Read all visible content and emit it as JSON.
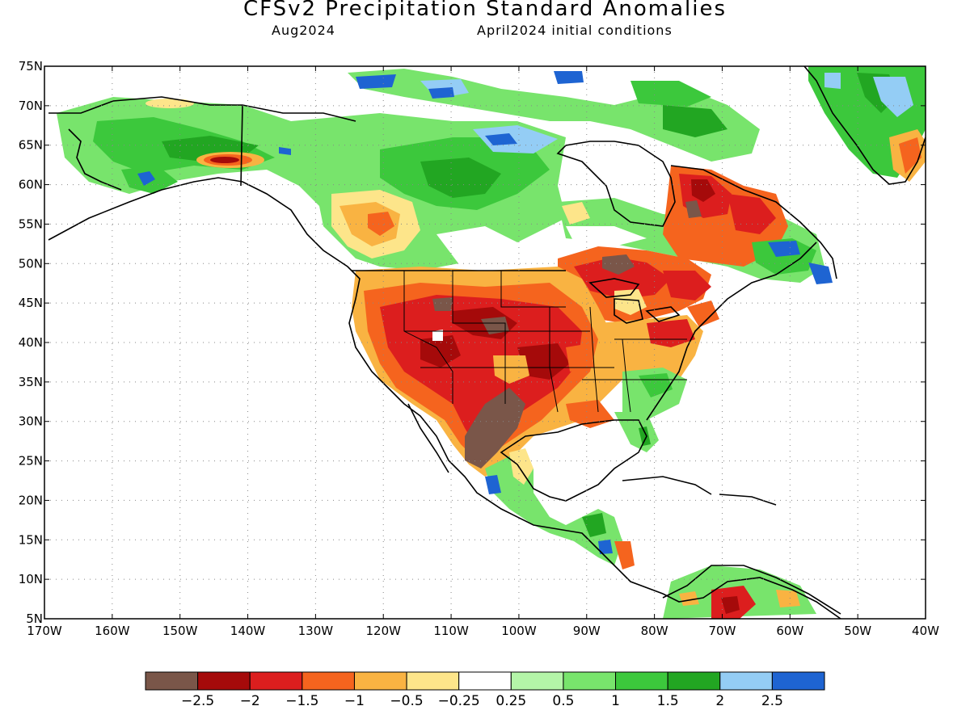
{
  "title": "CFSv2 Precipitation Standard Anomalies",
  "subtitle_left": "Aug2024",
  "subtitle_right": "April2024 initial conditions",
  "axes": {
    "lat_labels": [
      "75N",
      "70N",
      "65N",
      "60N",
      "55N",
      "50N",
      "45N",
      "40N",
      "35N",
      "30N",
      "25N",
      "20N",
      "15N",
      "10N",
      "5N"
    ],
    "lon_labels": [
      "170W",
      "160W",
      "150W",
      "140W",
      "130W",
      "120W",
      "110W",
      "100W",
      "90W",
      "80W",
      "70W",
      "60W",
      "50W",
      "40W"
    ],
    "lat_range": [
      5,
      75
    ],
    "lon_range": [
      -170,
      -40
    ],
    "grid": "dotted"
  },
  "colorbar": {
    "colors": [
      "#7a5649",
      "#a50a0a",
      "#dc1e1e",
      "#f5641e",
      "#f9b342",
      "#fde58a",
      "#ffffff",
      "#b4f5a8",
      "#78e46c",
      "#3cc83c",
      "#22a622",
      "#94cdf5",
      "#1e64d2"
    ],
    "labels": [
      "−2.5",
      "−2",
      "−1.5",
      "−1",
      "−0.5",
      "−0.25",
      "0.25",
      "0.5",
      "1",
      "1.5",
      "2",
      "2.5"
    ]
  }
}
